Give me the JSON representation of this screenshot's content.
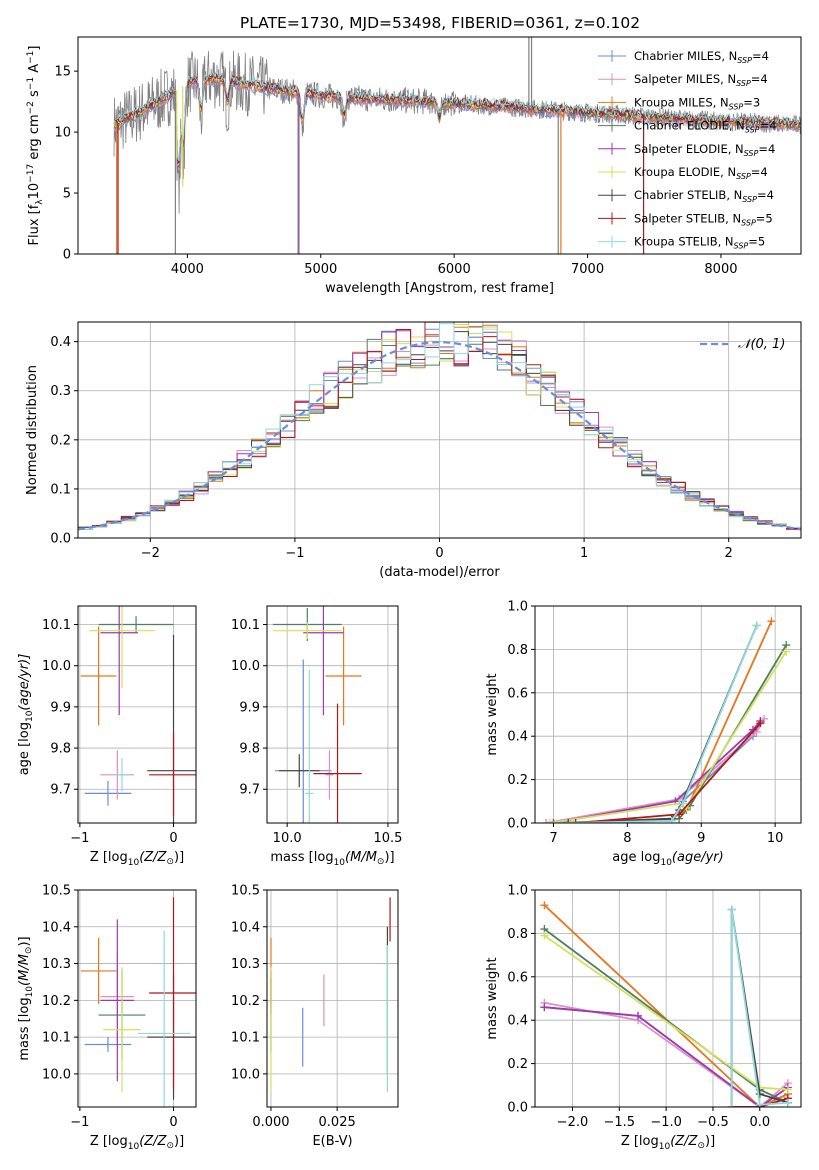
{
  "figure": {
    "title": "PLATE=1730, MJD=53498, FIBERID=0361, z=0.102"
  },
  "colors": {
    "Chabrier MILES": "#6a8fd8",
    "Salpeter MILES": "#e08fc0",
    "Kroupa MILES": "#e8761b",
    "Chabrier ELODIE": "#4d8060",
    "Salpeter ELODIE": "#9b3bb0",
    "Kroupa ELODIE": "#d5e05a",
    "Chabrier STELIB": "#444444",
    "Salpeter STELIB": "#b01818",
    "Kroupa STELIB": "#8fd8e0",
    "data": "#808080",
    "normal": "#6a8fd8"
  },
  "chart_data": [
    {
      "id": "spectrum",
      "type": "line",
      "xlabel": "wavelength [Angstrom, rest frame]",
      "ylabel": "Flux [f_λ10^-17 erg cm^-2 s^-1 A^-1]",
      "xlim": [
        3180,
        8600
      ],
      "ylim": [
        0,
        17.8
      ],
      "xticks": [
        4000,
        5000,
        6000,
        7000,
        8000
      ],
      "yticks": [
        0,
        5,
        10,
        15
      ],
      "legend_position": "upper right",
      "legend": [
        {
          "label": "Chabrier MILES, N",
          "sub": "SSP",
          "suffix": "=4",
          "key": "Chabrier MILES"
        },
        {
          "label": "Salpeter MILES, N",
          "sub": "SSP",
          "suffix": "=4",
          "key": "Salpeter MILES"
        },
        {
          "label": "Kroupa MILES, N",
          "sub": "SSP",
          "suffix": "=3",
          "key": "Kroupa MILES"
        },
        {
          "label": "Chabrier ELODIE, N",
          "sub": "SSP",
          "suffix": "=4",
          "key": "Chabrier ELODIE"
        },
        {
          "label": "Salpeter ELODIE, N",
          "sub": "SSP",
          "suffix": "=4",
          "key": "Salpeter ELODIE"
        },
        {
          "label": "Kroupa ELODIE, N",
          "sub": "SSP",
          "suffix": "=4",
          "key": "Kroupa ELODIE"
        },
        {
          "label": "Chabrier STELIB, N",
          "sub": "SSP",
          "suffix": "=4",
          "key": "Chabrier STELIB"
        },
        {
          "label": "Salpeter STELIB, N",
          "sub": "SSP",
          "suffix": "=5",
          "key": "Salpeter STELIB"
        },
        {
          "label": "Kroupa STELIB, N",
          "sub": "SSP",
          "suffix": "=5",
          "key": "Kroupa STELIB"
        }
      ],
      "continuum": [
        [
          3450,
          10.6
        ],
        [
          3600,
          11.4
        ],
        [
          3800,
          12.6
        ],
        [
          4000,
          14.0
        ],
        [
          4200,
          14.4
        ],
        [
          4400,
          14.0
        ],
        [
          4600,
          13.6
        ],
        [
          4800,
          13.3
        ],
        [
          5000,
          13.0
        ],
        [
          5400,
          12.7
        ],
        [
          5800,
          12.5
        ],
        [
          6200,
          12.2
        ],
        [
          6600,
          11.9
        ],
        [
          7000,
          11.6
        ],
        [
          7400,
          11.3
        ],
        [
          7800,
          11.0
        ],
        [
          8200,
          10.8
        ],
        [
          8600,
          10.6
        ]
      ],
      "absorption": [
        [
          3934,
          8
        ],
        [
          3969,
          6
        ],
        [
          4102,
          3
        ],
        [
          4300,
          2
        ],
        [
          4861,
          3
        ],
        [
          5175,
          2
        ],
        [
          5890,
          1.5
        ]
      ],
      "model_spikes": [
        [
          3470,
          "Kroupa MILES",
          0
        ],
        [
          3480,
          "Salpeter STELIB",
          0
        ],
        [
          3920,
          "Kroupa ELODIE",
          7.9
        ],
        [
          3965,
          "Kroupa ELODIE",
          5.5
        ],
        [
          4836,
          "Salpeter ELODIE",
          0
        ],
        [
          6800,
          "Kroupa MILES",
          0
        ],
        [
          7420,
          "Salpeter STELIB",
          0
        ]
      ],
      "data_spikes": [
        [
          3910,
          0
        ],
        [
          4830,
          0
        ],
        [
          6560,
          17.8
        ],
        [
          6580,
          17.8
        ],
        [
          6780,
          0
        ]
      ]
    },
    {
      "id": "residuals",
      "type": "bar",
      "xlabel": "(data-model)/error",
      "ylabel": "Normed distribution",
      "xlim": [
        -2.5,
        2.5
      ],
      "ylim": [
        0,
        0.44
      ],
      "xticks": [
        -2,
        -1,
        0,
        1,
        2
      ],
      "yticks": [
        0,
        0.1,
        0.2,
        0.3,
        0.4
      ],
      "grid": true,
      "legend_position": "upper right",
      "legend": [
        {
          "label": "𝒩(0, 1)",
          "key": "normal"
        }
      ],
      "bin_width": 0.1,
      "bin_start": -2.5
    },
    {
      "id": "age_vs_Z",
      "type": "scatter",
      "xlabel": "Z [log10(Z/Z⊙)]",
      "ylabel": "age [log10(age/yr)]",
      "xlim": [
        -1.02,
        0.24
      ],
      "ylim": [
        9.618,
        10.145
      ],
      "xticks": [
        -1,
        0
      ],
      "yticks": [
        9.7,
        9.8,
        9.9,
        10.0,
        10.1
      ],
      "grid": true,
      "points": [
        {
          "key": "Chabrier MILES",
          "x": -0.7,
          "y": 9.69,
          "xerr": 0.25,
          "yerr": 0.03
        },
        {
          "key": "Salpeter MILES",
          "x": -0.6,
          "y": 9.735,
          "xerr": 0.18,
          "yerr": 0.06
        },
        {
          "key": "Kroupa MILES",
          "x": -0.8,
          "y": 9.975,
          "xerr": 0.19,
          "yerr": 0.12
        },
        {
          "key": "Chabrier ELODIE",
          "x": -0.4,
          "y": 10.1,
          "xerr": 0.4,
          "yerr": 0.02
        },
        {
          "key": "Salpeter ELODIE",
          "x": -0.58,
          "y": 10.08,
          "xerr": 0.2,
          "yerr": 0.2
        },
        {
          "key": "Kroupa ELODIE",
          "x": -0.55,
          "y": 10.085,
          "xerr": 0.35,
          "yerr": 0.14
        },
        {
          "key": "Chabrier STELIB",
          "x": 0.0,
          "y": 9.745,
          "xerr": 0.28,
          "yerr": 0.33
        },
        {
          "key": "Salpeter STELIB",
          "x": 0.0,
          "y": 9.735,
          "xerr": 0.26,
          "yerr": 0.1
        },
        {
          "key": "Kroupa STELIB",
          "x": -0.55,
          "y": 9.735,
          "xerr": 0.08,
          "yerr": 0.04
        }
      ]
    },
    {
      "id": "age_vs_mass",
      "type": "scatter",
      "xlabel": "mass [log10(M/M⊙)]",
      "ylabel": "",
      "xlim": [
        9.9,
        10.55
      ],
      "ylim": [
        9.618,
        10.145
      ],
      "xticks": [
        10.0,
        10.5
      ],
      "yticks": [
        9.7,
        9.8,
        9.9,
        10.0,
        10.1
      ],
      "grid": true,
      "points": [
        {
          "key": "Chabrier MILES",
          "x": 10.08,
          "y": 9.745,
          "xerr": 0.14,
          "yerr": 0.27
        },
        {
          "key": "Salpeter MILES",
          "x": 10.21,
          "y": 9.735,
          "xerr": 0.02,
          "yerr": 0.06
        },
        {
          "key": "Kroupa MILES",
          "x": 10.28,
          "y": 9.975,
          "xerr": 0.09,
          "yerr": 0.12
        },
        {
          "key": "Chabrier ELODIE",
          "x": 10.1,
          "y": 10.1,
          "xerr": 0.17,
          "yerr": 0.04
        },
        {
          "key": "Salpeter ELODIE",
          "x": 10.18,
          "y": 10.08,
          "xerr": 0.1,
          "yerr": 0.2
        },
        {
          "key": "Kroupa ELODIE",
          "x": 10.1,
          "y": 10.085,
          "xerr": 0.17,
          "yerr": 0.02
        },
        {
          "key": "Chabrier STELIB",
          "x": 10.06,
          "y": 9.745,
          "xerr": 0.1,
          "yerr": 0.04
        },
        {
          "key": "Salpeter STELIB",
          "x": 10.25,
          "y": 9.738,
          "xerr": 0.12,
          "yerr": 0.17
        },
        {
          "key": "Kroupa STELIB",
          "x": 10.11,
          "y": 9.69,
          "xerr": 0.02,
          "yerr": 0.3
        }
      ]
    },
    {
      "id": "mass_weight_vs_age",
      "type": "line",
      "xlabel": "age log10(age/yr)",
      "ylabel": "mass weight",
      "xlim": [
        6.75,
        10.35
      ],
      "ylim": [
        0,
        1.0
      ],
      "xticks": [
        7,
        8,
        9,
        10
      ],
      "yticks": [
        0,
        0.2,
        0.4,
        0.6,
        0.8,
        1.0
      ],
      "grid": true,
      "series": [
        {
          "key": "Chabrier MILES",
          "x": [
            6.9,
            8.6,
            8.75,
            9.7,
            9.8
          ],
          "y": [
            0.0,
            0.01,
            0.1,
            0.4,
            0.47
          ]
        },
        {
          "key": "Salpeter MILES",
          "x": [
            6.9,
            8.7,
            9.75,
            9.85
          ],
          "y": [
            0.0,
            0.11,
            0.42,
            0.48
          ]
        },
        {
          "key": "Kroupa MILES",
          "x": [
            7.0,
            8.6,
            8.8,
            9.95
          ],
          "y": [
            0.0,
            0.02,
            0.06,
            0.93
          ]
        },
        {
          "key": "Chabrier ELODIE",
          "x": [
            7.1,
            8.7,
            8.85,
            10.15
          ],
          "y": [
            0.0,
            0.02,
            0.08,
            0.82
          ]
        },
        {
          "key": "Salpeter ELODIE",
          "x": [
            7.0,
            8.65,
            9.7,
            9.8
          ],
          "y": [
            0.0,
            0.1,
            0.43,
            0.47
          ]
        },
        {
          "key": "Kroupa ELODIE",
          "x": [
            6.95,
            8.7,
            8.8,
            10.15
          ],
          "y": [
            0.0,
            0.09,
            0.07,
            0.79
          ]
        },
        {
          "key": "Chabrier STELIB",
          "x": [
            7.2,
            8.6,
            8.7,
            9.75
          ],
          "y": [
            0.0,
            0.02,
            0.06,
            0.91
          ]
        },
        {
          "key": "Salpeter STELIB",
          "x": [
            7.3,
            8.7,
            9.8
          ],
          "y": [
            0.0,
            0.04,
            0.46
          ]
        },
        {
          "key": "Kroupa STELIB",
          "x": [
            7.1,
            8.6,
            8.75,
            9.75
          ],
          "y": [
            0.0,
            0.01,
            0.09,
            0.91
          ]
        }
      ]
    },
    {
      "id": "mass_vs_Z",
      "type": "scatter",
      "xlabel": "Z [log10(Z/Z⊙)]",
      "ylabel": "mass [log10(M/M⊙)]",
      "xlim": [
        -1.02,
        0.24
      ],
      "ylim": [
        9.91,
        10.5
      ],
      "xticks": [
        -1,
        0
      ],
      "yticks": [
        10.0,
        10.1,
        10.2,
        10.3,
        10.4,
        10.5
      ],
      "grid": true,
      "points": [
        {
          "key": "Chabrier MILES",
          "x": -0.7,
          "y": 10.08,
          "xerr": 0.25,
          "yerr": 0.02
        },
        {
          "key": "Salpeter MILES",
          "x": -0.6,
          "y": 10.21,
          "xerr": 0.18,
          "yerr": 0.12
        },
        {
          "key": "Kroupa MILES",
          "x": -0.8,
          "y": 10.28,
          "xerr": 0.19,
          "yerr": 0.09
        },
        {
          "key": "Chabrier ELODIE",
          "x": -0.55,
          "y": 10.16,
          "xerr": 0.25,
          "yerr": 0.12
        },
        {
          "key": "Salpeter ELODIE",
          "x": -0.6,
          "y": 10.2,
          "xerr": 0.18,
          "yerr": 0.22
        },
        {
          "key": "Kroupa ELODIE",
          "x": -0.55,
          "y": 10.12,
          "xerr": 0.2,
          "yerr": 0.17
        },
        {
          "key": "Chabrier STELIB",
          "x": 0.0,
          "y": 10.1,
          "xerr": 0.28,
          "yerr": 0.17
        },
        {
          "key": "Salpeter STELIB",
          "x": 0.0,
          "y": 10.22,
          "xerr": 0.26,
          "yerr": 0.26
        },
        {
          "key": "Kroupa STELIB",
          "x": -0.1,
          "y": 10.11,
          "xerr": 0.28,
          "yerr": 0.28
        }
      ]
    },
    {
      "id": "mass_vs_EBV",
      "type": "scatter",
      "xlabel": "E(B-V)",
      "ylabel": "",
      "xlim": [
        -0.0015,
        0.048
      ],
      "ylim": [
        9.91,
        10.5
      ],
      "xticks": [
        0.0,
        0.025
      ],
      "xticklabels": [
        "0.000",
        "0.025"
      ],
      "yticks": [
        10.0,
        10.1,
        10.2,
        10.3,
        10.4,
        10.5
      ],
      "grid": true,
      "points": [
        {
          "key": "Chabrier MILES",
          "x": 0.012,
          "y": 10.1,
          "xerr": 0,
          "yerr": 0.08
        },
        {
          "key": "Salpeter MILES",
          "x": 0.02,
          "y": 10.2,
          "xerr": 0,
          "yerr": 0.07
        },
        {
          "key": "Kroupa MILES",
          "x": 0.0,
          "y": 10.28,
          "xerr": 0,
          "yerr": 0.09
        },
        {
          "key": "Chabrier ELODIE",
          "x": 0.0,
          "y": 10.16,
          "xerr": 0,
          "yerr": 0.1
        },
        {
          "key": "Salpeter ELODIE",
          "x": 0.0,
          "y": 10.22,
          "xerr": 0,
          "yerr": 0.06
        },
        {
          "key": "Kroupa ELODIE",
          "x": 0.0,
          "y": 10.12,
          "xerr": 0,
          "yerr": 0.17
        },
        {
          "key": "Chabrier STELIB",
          "x": 0.044,
          "y": 10.2,
          "xerr": 0,
          "yerr": 0.2
        },
        {
          "key": "Salpeter STELIB",
          "x": 0.045,
          "y": 10.42,
          "xerr": 0,
          "yerr": 0.06
        },
        {
          "key": "Kroupa STELIB",
          "x": 0.044,
          "y": 10.15,
          "xerr": 0,
          "yerr": 0.2
        }
      ]
    },
    {
      "id": "mass_weight_vs_Z",
      "type": "line",
      "xlabel": "Z [log10(Z/Z⊙)]",
      "ylabel": "mass weight",
      "xlim": [
        -2.4,
        0.44
      ],
      "ylim": [
        0,
        1.0
      ],
      "xticks": [
        -2.0,
        -1.5,
        -1.0,
        -0.5,
        0.0
      ],
      "xticklabels": [
        "−2.0",
        "−1.5",
        "−1.0",
        "−0.5",
        "0.0"
      ],
      "yticks": [
        0,
        0.2,
        0.4,
        0.6,
        0.8,
        1.0
      ],
      "grid": true,
      "series": [
        {
          "key": "Chabrier MILES",
          "x": [
            -2.3,
            -1.3,
            0.0,
            0.3
          ],
          "y": [
            0.46,
            0.42,
            0.0,
            0.06
          ]
        },
        {
          "key": "Salpeter MILES",
          "x": [
            -2.3,
            -1.3,
            0.0,
            0.3
          ],
          "y": [
            0.48,
            0.4,
            0.0,
            0.11
          ]
        },
        {
          "key": "Kroupa MILES",
          "x": [
            -2.3,
            0.0,
            0.3
          ],
          "y": [
            0.93,
            0.0,
            0.06
          ]
        },
        {
          "key": "Chabrier ELODIE",
          "x": [
            -2.3,
            0.0,
            0.3
          ],
          "y": [
            0.82,
            0.08,
            0.02
          ]
        },
        {
          "key": "Salpeter ELODIE",
          "x": [
            -2.3,
            -1.3,
            0.0,
            0.3
          ],
          "y": [
            0.46,
            0.42,
            0.0,
            0.09
          ]
        },
        {
          "key": "Kroupa ELODIE",
          "x": [
            -2.3,
            0.0,
            0.3
          ],
          "y": [
            0.79,
            0.09,
            0.08
          ]
        },
        {
          "key": "Chabrier STELIB",
          "x": [
            -0.3,
            -0.3,
            0.0,
            0.3
          ],
          "y": [
            0.0,
            0.91,
            0.06,
            0.02
          ]
        },
        {
          "key": "Salpeter STELIB",
          "x": [
            -0.3,
            0.0,
            0.3
          ],
          "y": [
            0.0,
            0.0,
            0.04
          ]
        },
        {
          "key": "Kroupa STELIB",
          "x": [
            -0.3,
            -0.3,
            0.0,
            0.3
          ],
          "y": [
            0.0,
            0.91,
            0.01,
            0.02
          ]
        }
      ]
    }
  ]
}
